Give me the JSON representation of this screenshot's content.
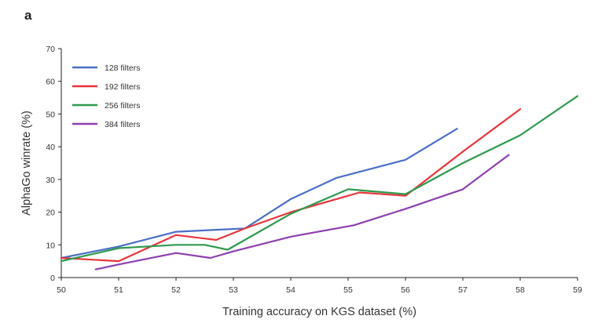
{
  "figure": {
    "panel_label": "a"
  },
  "chart_data": {
    "type": "line",
    "title": "",
    "xlabel": "Training accuracy on KGS dataset (%)",
    "ylabel": "AlphaGo winrate (%)",
    "xlim": [
      50,
      59
    ],
    "ylim": [
      0,
      70
    ],
    "xticks": [
      50,
      51,
      52,
      53,
      54,
      55,
      56,
      57,
      58,
      59
    ],
    "yticks": [
      0,
      10,
      20,
      30,
      40,
      50,
      60,
      70
    ],
    "grid": false,
    "legend_position": "top-left",
    "series": [
      {
        "name": "128 filters",
        "color": "#4a6fc7",
        "x": [
          50,
          51,
          52,
          53.2,
          54,
          54.8,
          56,
          56.9
        ],
        "y": [
          6,
          9.5,
          14,
          15,
          24,
          30.5,
          36,
          45.5
        ]
      },
      {
        "name": "192 filters",
        "color": "#e8353c",
        "x": [
          50,
          51,
          52,
          52.7,
          53.2,
          54,
          55.2,
          56,
          57,
          58
        ],
        "y": [
          6,
          5,
          13,
          11.5,
          15,
          20,
          26,
          25,
          38.5,
          51.5
        ]
      },
      {
        "name": "256 filters",
        "color": "#2e9a4e",
        "x": [
          50,
          51,
          52,
          52.5,
          52.9,
          54,
          55,
          56,
          57,
          58,
          59
        ],
        "y": [
          5,
          9,
          10,
          10,
          8.5,
          19.5,
          27,
          25.5,
          35,
          43.5,
          55.5
        ]
      },
      {
        "name": "384 filters",
        "color": "#8e3fb0",
        "x": [
          50.6,
          51,
          52,
          52.6,
          53,
          54,
          55.1,
          56,
          57,
          57.8
        ],
        "y": [
          2.5,
          4,
          7.5,
          6,
          8,
          12.5,
          16,
          21,
          27,
          37.5
        ]
      }
    ]
  }
}
